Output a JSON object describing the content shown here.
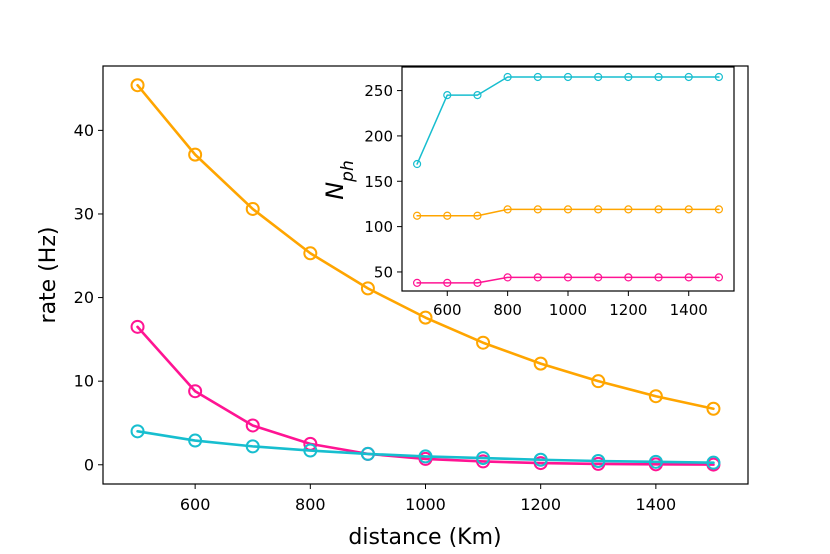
{
  "chart_data": [
    {
      "type": "line",
      "xlabel": "distance (Km)",
      "ylabel": "rate (Hz)",
      "xlim": [
        440,
        1560
      ],
      "ylim": [
        -2.3,
        47.7
      ],
      "xticks": [
        600,
        800,
        1000,
        1200,
        1400
      ],
      "yticks": [
        0,
        10,
        20,
        30,
        40
      ],
      "grid": false,
      "x": [
        500,
        600,
        700,
        800,
        900,
        1000,
        1100,
        1200,
        1300,
        1400,
        1500
      ],
      "series": [
        {
          "color": "#ffa500",
          "values": [
            45.4,
            37.1,
            30.6,
            25.3,
            21.1,
            17.6,
            14.6,
            12.1,
            10.0,
            8.2,
            6.7
          ]
        },
        {
          "color": "#ff1493",
          "values": [
            16.5,
            8.8,
            4.7,
            2.5,
            1.3,
            0.7,
            0.4,
            0.2,
            0.1,
            0.05,
            0.02
          ]
        },
        {
          "color": "#17becf",
          "values": [
            4.0,
            2.9,
            2.2,
            1.7,
            1.3,
            1.0,
            0.8,
            0.6,
            0.45,
            0.35,
            0.25
          ]
        }
      ]
    },
    {
      "type": "line",
      "xlabel": "",
      "ylabel": "N_ph",
      "ylabel_main": "N",
      "ylabel_sub": "ph",
      "xlim": [
        450,
        1550
      ],
      "ylim": [
        29,
        276
      ],
      "xticks": [
        600,
        800,
        1000,
        1200,
        1400
      ],
      "yticks": [
        50,
        100,
        150,
        200,
        250
      ],
      "grid": false,
      "x": [
        500,
        600,
        700,
        800,
        900,
        1000,
        1100,
        1200,
        1300,
        1400,
        1500
      ],
      "series": [
        {
          "color": "#17becf",
          "values": [
            169,
            245,
            245,
            265,
            265,
            265,
            265,
            265,
            265,
            265,
            265
          ]
        },
        {
          "color": "#ffa500",
          "values": [
            112,
            112,
            112,
            119,
            119,
            119,
            119,
            119,
            119,
            119,
            119
          ]
        },
        {
          "color": "#ff1493",
          "values": [
            38,
            38,
            38,
            44,
            44,
            44,
            44,
            44,
            44,
            44,
            44
          ]
        }
      ]
    }
  ]
}
